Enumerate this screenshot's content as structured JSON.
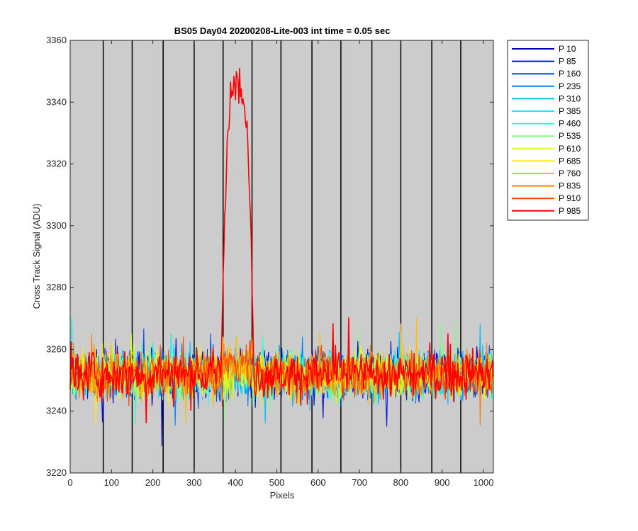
{
  "chart_data": {
    "type": "line",
    "title": "BS05 Day04 20200208-Lite-003 int time = 0.05 sec",
    "xlabel": "Pixels",
    "ylabel": "Cross Track Signal (ADU)",
    "xlim": [
      0,
      1024
    ],
    "ylim": [
      3220,
      3360
    ],
    "xticks": [
      "0",
      "100",
      "200",
      "300",
      "400",
      "500",
      "600",
      "700",
      "800",
      "900",
      "1000"
    ],
    "yticks": [
      "3220",
      "3240",
      "3260",
      "3280",
      "3300",
      "3320",
      "3340",
      "3360"
    ],
    "column_boundaries": [
      0,
      80,
      150,
      225,
      300,
      370,
      440,
      510,
      585,
      655,
      730,
      800,
      875,
      945,
      1024
    ],
    "grid": false,
    "background": "#cccccc",
    "legend_position": "outside-top-right",
    "noise_baseline": 3252,
    "series": [
      {
        "name": "P 10",
        "color": "#0000bf"
      },
      {
        "name": "P 85",
        "color": "#0013f2"
      },
      {
        "name": "P 160",
        "color": "#0047ff"
      },
      {
        "name": "P 235",
        "color": "#0083ff"
      },
      {
        "name": "P 310",
        "color": "#00bfff"
      },
      {
        "name": "P 385",
        "color": "#00f0ff"
      },
      {
        "name": "P 460",
        "color": "#2affd4"
      },
      {
        "name": "P 535",
        "color": "#7fff80"
      },
      {
        "name": "P 610",
        "color": "#d4ff2a"
      },
      {
        "name": "P 685",
        "color": "#ffee00"
      },
      {
        "name": "P 760",
        "color": "#ffbf00"
      },
      {
        "name": "P 835",
        "color": "#ff8300"
      },
      {
        "name": "P 910",
        "color": "#ff4700"
      },
      {
        "name": "P 985",
        "color": "#ff0000"
      }
    ],
    "peak": {
      "series": "P 985",
      "x_start": 365,
      "x_end": 445,
      "peak_x": 395,
      "peak_y": 3355
    }
  }
}
